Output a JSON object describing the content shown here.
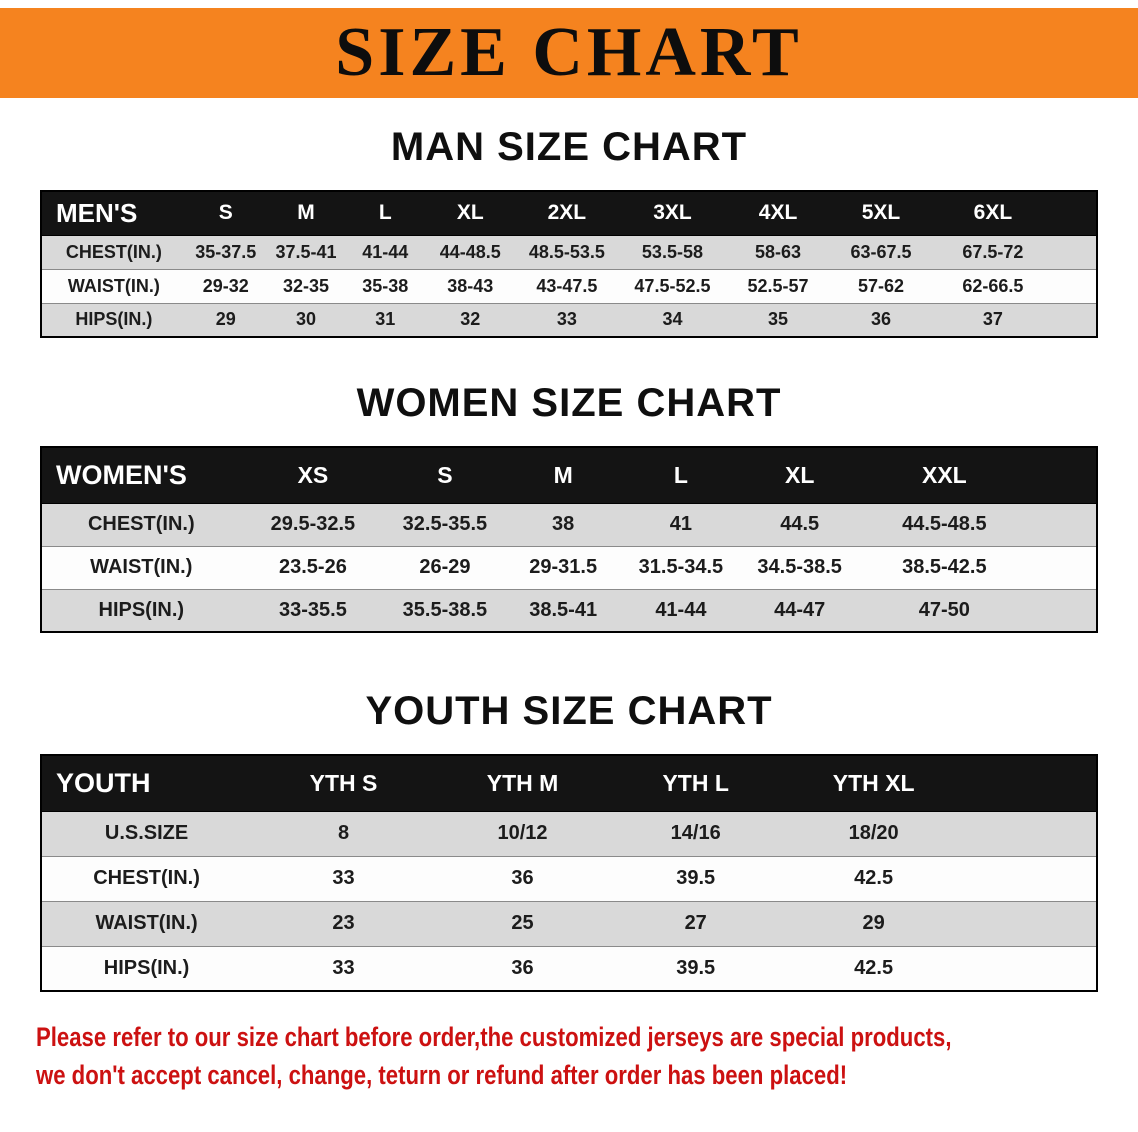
{
  "banner": {
    "title": "SIZE CHART"
  },
  "sections": [
    {
      "id": "men",
      "heading": "MAN SIZE CHART",
      "table": {
        "header": [
          "MEN'S",
          "S",
          "M",
          "L",
          "XL",
          "2XL",
          "3XL",
          "4XL",
          "5XL",
          "6XL"
        ],
        "rows": [
          {
            "label": "CHEST(IN.)",
            "values": [
              "35-37.5",
              "37.5-41",
              "41-44",
              "44-48.5",
              "48.5-53.5",
              "53.5-58",
              "58-63",
              "63-67.5",
              "67.5-72"
            ]
          },
          {
            "label": "WAIST(IN.)",
            "values": [
              "29-32",
              "32-35",
              "35-38",
              "38-43",
              "43-47.5",
              "47.5-52.5",
              "52.5-57",
              "57-62",
              "62-66.5"
            ]
          },
          {
            "label": "HIPS(IN.)",
            "values": [
              "29",
              "30",
              "31",
              "32",
              "33",
              "34",
              "35",
              "36",
              "37"
            ]
          }
        ]
      }
    },
    {
      "id": "women",
      "heading": "WOMEN SIZE CHART",
      "table": {
        "header": [
          "WOMEN'S",
          "XS",
          "S",
          "M",
          "L",
          "XL",
          "XXL"
        ],
        "rows": [
          {
            "label": "CHEST(IN.)",
            "values": [
              "29.5-32.5",
              "32.5-35.5",
              "38",
              "41",
              "44.5",
              "44.5-48.5"
            ]
          },
          {
            "label": "WAIST(IN.)",
            "values": [
              "23.5-26",
              "26-29",
              "29-31.5",
              "31.5-34.5",
              "34.5-38.5",
              "38.5-42.5"
            ]
          },
          {
            "label": "HIPS(IN.)",
            "values": [
              "33-35.5",
              "35.5-38.5",
              "38.5-41",
              "41-44",
              "44-47",
              "47-50"
            ]
          }
        ]
      }
    },
    {
      "id": "youth",
      "heading": "YOUTH SIZE CHART",
      "table": {
        "header": [
          "YOUTH",
          "YTH S",
          "YTH M",
          "YTH L",
          "YTH XL"
        ],
        "rows": [
          {
            "label": "U.S.SIZE",
            "values": [
              "8",
              "10/12",
              "14/16",
              "18/20"
            ]
          },
          {
            "label": "CHEST(IN.)",
            "values": [
              "33",
              "36",
              "39.5",
              "42.5"
            ]
          },
          {
            "label": "WAIST(IN.)",
            "values": [
              "23",
              "25",
              "27",
              "29"
            ]
          },
          {
            "label": "HIPS(IN.)",
            "values": [
              "33",
              "36",
              "39.5",
              "42.5"
            ]
          }
        ]
      }
    }
  ],
  "disclaimer": {
    "lines": [
      "Please refer to our size chart before order,the customized jerseys are special products,",
      "we don't accept cancel, change, teturn or refund after order has been placed!"
    ]
  },
  "colors": {
    "banner_orange": "#F5831F",
    "header_black": "#141414",
    "stripe_gray": "#D9D9D9",
    "disclaimer_red": "#CC1111"
  }
}
